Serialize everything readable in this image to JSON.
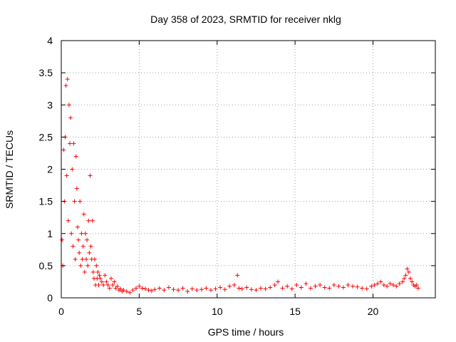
{
  "chart_data": {
    "type": "scatter",
    "title": "Day 358 of 2023, SRMTID for receiver nklg",
    "xlabel": "GPS time / hours",
    "ylabel": "SRMTID / TECUs",
    "xlim": [
      0,
      24
    ],
    "ylim": [
      0,
      4
    ],
    "xticks": [
      0,
      5,
      10,
      15,
      20
    ],
    "xtick_labels": [
      "0",
      "5",
      "10",
      "15",
      "20"
    ],
    "yticks": [
      0,
      0.5,
      1,
      1.5,
      2,
      2.5,
      3,
      3.5,
      4
    ],
    "ytick_labels": [
      "0",
      "0.5",
      "1",
      "1.5",
      "2",
      "2.5",
      "3",
      "3.5",
      "4"
    ],
    "grid": true,
    "marker": "+",
    "color": "#ff0000",
    "series": [
      {
        "name": "SRMTID",
        "x": [
          0.05,
          0.1,
          0.15,
          0.2,
          0.25,
          0.3,
          0.35,
          0.4,
          0.45,
          0.5,
          0.55,
          0.6,
          0.65,
          0.7,
          0.75,
          0.8,
          0.85,
          0.9,
          0.95,
          1.0,
          1.05,
          1.1,
          1.15,
          1.2,
          1.25,
          1.3,
          1.35,
          1.4,
          1.45,
          1.5,
          1.55,
          1.6,
          1.65,
          1.7,
          1.75,
          1.8,
          1.85,
          1.9,
          1.95,
          2.0,
          2.05,
          2.1,
          2.15,
          2.2,
          2.25,
          2.3,
          2.35,
          2.4,
          2.45,
          2.5,
          2.6,
          2.7,
          2.8,
          2.9,
          3.0,
          3.1,
          3.2,
          3.3,
          3.4,
          3.5,
          3.6,
          3.7,
          3.8,
          3.9,
          4.0,
          4.2,
          4.4,
          4.6,
          4.8,
          5.0,
          5.2,
          5.4,
          5.6,
          5.8,
          6.0,
          6.3,
          6.6,
          6.9,
          7.2,
          7.5,
          7.8,
          8.1,
          8.4,
          8.7,
          9.0,
          9.3,
          9.6,
          9.9,
          10.2,
          10.5,
          10.8,
          11.1,
          11.3,
          11.4,
          11.6,
          11.9,
          12.2,
          12.5,
          12.8,
          13.1,
          13.4,
          13.7,
          13.9,
          14.2,
          14.5,
          14.8,
          15.1,
          15.4,
          15.7,
          16.0,
          16.3,
          16.6,
          16.9,
          17.2,
          17.5,
          17.8,
          18.1,
          18.4,
          18.7,
          19.0,
          19.3,
          19.6,
          19.9,
          20.1,
          20.3,
          20.5,
          20.7,
          20.9,
          21.1,
          21.3,
          21.5,
          21.7,
          21.9,
          22.0,
          22.1,
          22.2,
          22.3,
          22.4,
          22.5,
          22.6,
          22.7,
          22.8,
          22.9
        ],
        "values": [
          0.9,
          0.5,
          2.3,
          1.5,
          2.5,
          3.3,
          1.9,
          3.4,
          1.2,
          3.0,
          2.4,
          2.8,
          1.0,
          2.0,
          0.8,
          2.4,
          1.5,
          0.6,
          2.2,
          1.7,
          1.1,
          0.9,
          0.7,
          1.5,
          0.5,
          1.0,
          0.6,
          0.8,
          1.3,
          0.4,
          1.0,
          0.6,
          0.9,
          0.5,
          1.2,
          0.7,
          1.9,
          0.8,
          0.6,
          1.2,
          0.4,
          0.3,
          0.6,
          0.2,
          0.5,
          0.3,
          0.4,
          0.2,
          0.35,
          0.3,
          0.25,
          0.2,
          0.35,
          0.25,
          0.2,
          0.15,
          0.3,
          0.2,
          0.25,
          0.15,
          0.18,
          0.12,
          0.14,
          0.1,
          0.12,
          0.1,
          0.08,
          0.12,
          0.15,
          0.18,
          0.15,
          0.14,
          0.12,
          0.11,
          0.13,
          0.15,
          0.12,
          0.16,
          0.13,
          0.12,
          0.15,
          0.1,
          0.14,
          0.12,
          0.13,
          0.15,
          0.12,
          0.14,
          0.16,
          0.13,
          0.18,
          0.2,
          0.35,
          0.15,
          0.14,
          0.16,
          0.13,
          0.12,
          0.15,
          0.14,
          0.16,
          0.2,
          0.25,
          0.15,
          0.18,
          0.14,
          0.2,
          0.16,
          0.22,
          0.15,
          0.18,
          0.2,
          0.16,
          0.15,
          0.2,
          0.18,
          0.16,
          0.2,
          0.18,
          0.17,
          0.15,
          0.14,
          0.18,
          0.2,
          0.22,
          0.25,
          0.2,
          0.18,
          0.22,
          0.2,
          0.18,
          0.22,
          0.25,
          0.3,
          0.35,
          0.45,
          0.4,
          0.3,
          0.25,
          0.2,
          0.18,
          0.2,
          0.15
        ]
      }
    ]
  }
}
